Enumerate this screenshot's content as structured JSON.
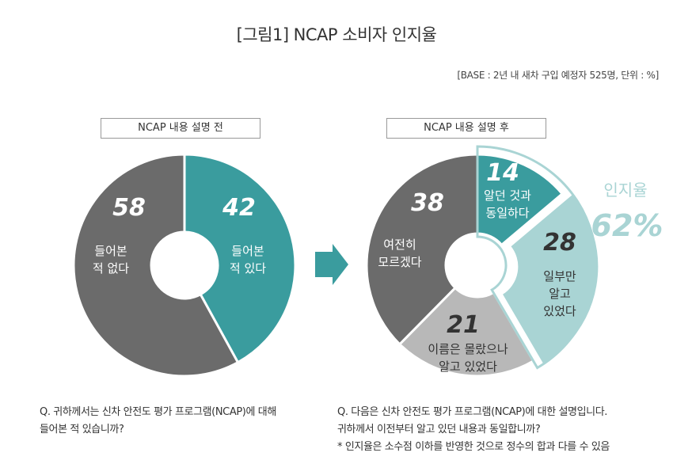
{
  "title": "[그림1] NCAP 소비자 인지율",
  "base_note": "[BASE : 2년 내 새차 구입 예정자 525명, 단위 : %]",
  "chart_data": [
    {
      "type": "pie",
      "donut": true,
      "title": "NCAP 내용 설명 전",
      "slices": [
        {
          "value": 42,
          "value_label": "42",
          "label_lines": [
            "들어본",
            "적 있다"
          ],
          "color": "#3a9c9e"
        },
        {
          "value": 58,
          "value_label": "58",
          "label_lines": [
            "들어본",
            "적 없다"
          ],
          "color": "#6b6b6b"
        }
      ]
    },
    {
      "type": "pie",
      "donut": true,
      "title": "NCAP 내용 설명 후",
      "slices": [
        {
          "value": 14,
          "value_label": "14",
          "label_lines": [
            "알던 것과",
            "동일하다"
          ],
          "color": "#3a9c9e"
        },
        {
          "value": 28,
          "value_label": "28",
          "label_lines": [
            "일부만",
            "알고",
            "있었다"
          ],
          "color": "#a9d4d4"
        },
        {
          "value": 21,
          "value_label": "21",
          "label_lines": [
            "이름은 몰랐으나",
            "알고 있었다"
          ],
          "color": "#b8b8b8"
        },
        {
          "value": 38,
          "value_label": "38",
          "label_lines": [
            "여전히",
            "모르겠다"
          ],
          "color": "#6b6b6b"
        }
      ],
      "highlight": {
        "label": "인지율",
        "value": "62%",
        "color": "#a9d4d4"
      }
    }
  ],
  "questions": {
    "left": [
      "Q. 귀하께서는 신차 안전도 평가 프로그램(NCAP)에 대해",
      "들어본 적 있습니까?"
    ],
    "right": [
      "Q. 다음은 신차 안전도 평가 프로그램(NCAP)에 대한 설명입니다.",
      "귀하께서 이전부터 알고 있던 내용과 동일합니까?",
      "* 인지율은 소수점 이하를 반영한 것으로 정수의 합과 다를 수 있음"
    ]
  },
  "colors": {
    "teal": "#3a9c9e",
    "light_teal": "#a9d4d4",
    "dark_gray": "#6b6b6b",
    "light_gray": "#b8b8b8"
  }
}
